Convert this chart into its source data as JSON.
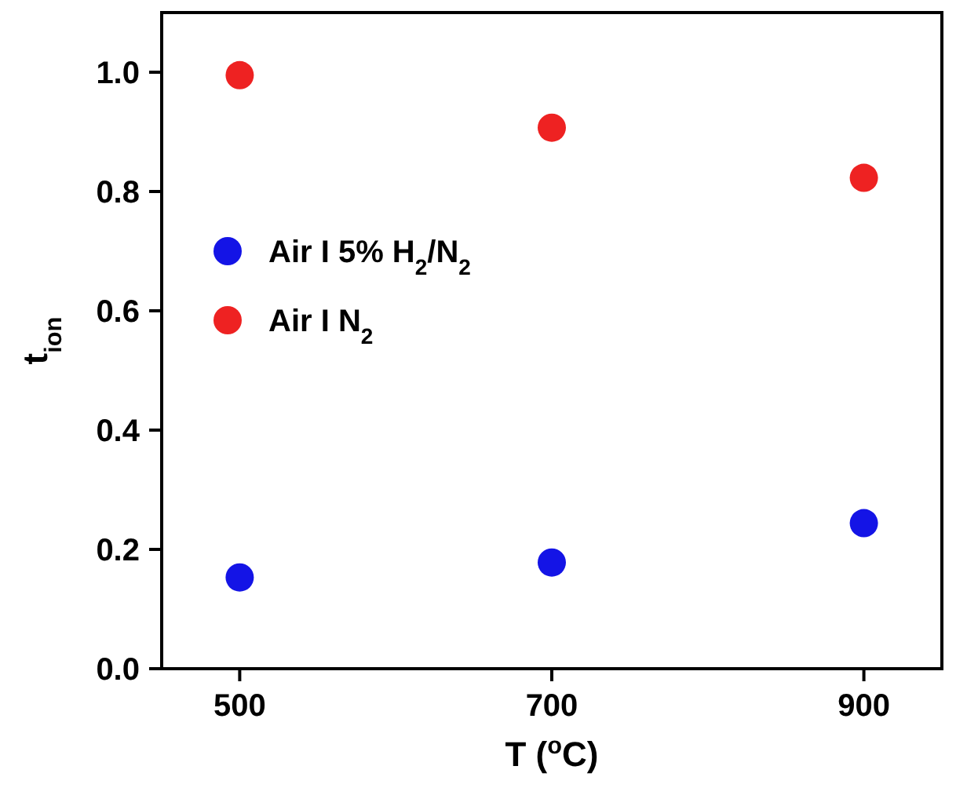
{
  "chart_data": {
    "type": "scatter",
    "xlabel": "T ($^{o}$C)",
    "ylabel": "t$_{ion}$",
    "xlim": [
      450,
      950
    ],
    "xticks": [
      500,
      700,
      900
    ],
    "ylim": [
      0,
      1.1
    ],
    "yticks": [
      {
        "value": 0,
        "label": "0.0"
      },
      {
        "value": 0.2,
        "label": "0.2"
      },
      {
        "value": 0.4,
        "label": "0.4"
      },
      {
        "value": 0.6,
        "label": "0.6"
      },
      {
        "value": 0.8,
        "label": "0.8"
      },
      {
        "value": 1,
        "label": "1.0"
      }
    ],
    "marker": "circle",
    "legend": "top left",
    "grid": false,
    "series": [
      {
        "name": "Air I 5% H$_{2}$/N$_{2}$",
        "color": "#1414e6",
        "x": [
          500,
          700,
          900
        ],
        "values": [
          0.153,
          0.178,
          0.244
        ]
      },
      {
        "name": "Air I N$_{2}$",
        "color": "#ee2222",
        "x": [
          500,
          700,
          900
        ],
        "values": [
          0.995,
          0.907,
          0.823
        ]
      }
    ]
  }
}
